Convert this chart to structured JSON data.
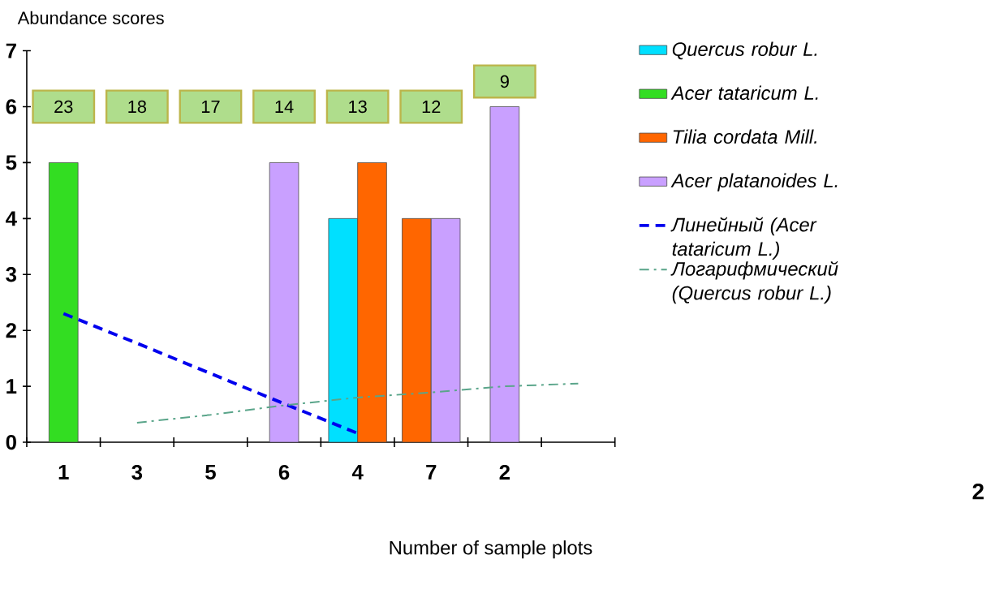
{
  "chart_data": {
    "type": "bar",
    "ylabel": "Abundance scores",
    "xlabel": "Number of sample plots",
    "categories": [
      "1",
      "3",
      "5",
      "6",
      "4",
      "7",
      "2",
      null
    ],
    "series": [
      {
        "name": "Quercus robur L.",
        "color": "#00e0ff",
        "values": [
          null,
          null,
          null,
          null,
          4,
          null,
          null,
          null
        ]
      },
      {
        "name": "Acer tataricum L.",
        "color": "#33dd22",
        "values": [
          5,
          null,
          null,
          null,
          null,
          null,
          null,
          null
        ]
      },
      {
        "name": "Tilia cordata Mill.",
        "color": "#ff6600",
        "values": [
          null,
          null,
          null,
          null,
          5,
          4,
          null,
          null
        ]
      },
      {
        "name": "Acer platanoides L.",
        "color": "#c9a0ff",
        "values": [
          null,
          null,
          null,
          5,
          null,
          4,
          6,
          null
        ]
      },
      {
        "name": "Линейный (Acer tataricum L.)",
        "type": "line",
        "line_style": "dashed",
        "color": "#0000ee",
        "values": [
          2.3,
          1.77,
          1.23,
          0.69,
          0.16,
          null,
          null,
          null
        ]
      },
      {
        "name": "Логарифмический (Quercus robur L.)",
        "type": "line",
        "line_style": "dashdot",
        "color": "#5aa58a",
        "values": [
          null,
          0.35,
          0.49,
          0.66,
          0.8,
          0.89,
          1.0,
          1.05
        ]
      }
    ],
    "ylim": [
      0,
      7
    ],
    "yticks": [
      0,
      1,
      2,
      3,
      4,
      5,
      6,
      7
    ],
    "legend": "right",
    "annotations": [
      "23",
      "18",
      "17",
      "14",
      "13",
      "12",
      "9",
      "2"
    ]
  }
}
